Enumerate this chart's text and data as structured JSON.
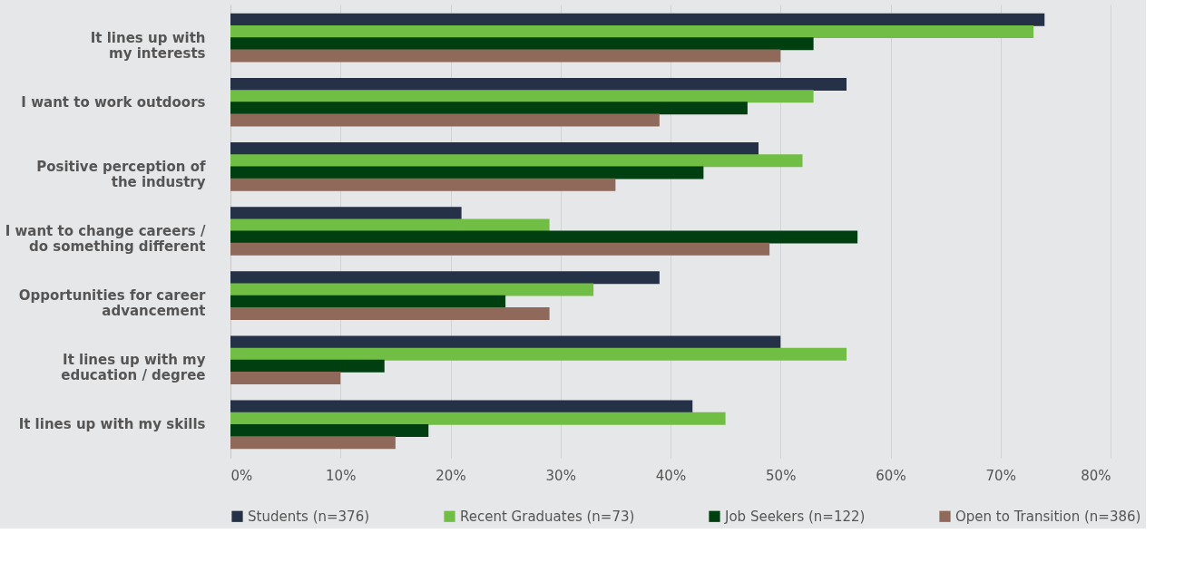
{
  "chart_data": {
    "type": "bar",
    "orientation": "horizontal",
    "categories": [
      "It lines up with\nmy interests",
      "I want to work outdoors",
      "Positive perception of\nthe industry",
      "I want to change careers /\ndo something different",
      "Opportunities for career\nadvancement",
      "It lines up with my\neducation / degree",
      "It lines up with my skills"
    ],
    "series": [
      {
        "name": "Students (n=376)",
        "color": "#243147",
        "values": [
          74,
          56,
          48,
          21,
          39,
          50,
          42
        ]
      },
      {
        "name": "Recent Graduates (n=73)",
        "color": "#70bf44",
        "values": [
          73,
          53,
          52,
          29,
          33,
          56,
          45
        ]
      },
      {
        "name": "Job Seekers (n=122)",
        "color": "#003f0f",
        "values": [
          53,
          47,
          43,
          57,
          25,
          14,
          18
        ]
      },
      {
        "name": "Open to Transition (n=386)",
        "color": "#8f6a5a",
        "values": [
          50,
          39,
          35,
          49,
          29,
          10,
          15
        ]
      }
    ],
    "xlim": [
      0,
      80
    ],
    "xticks": [
      {
        "value": 0,
        "label": "0%"
      },
      {
        "value": 10,
        "label": "10%"
      },
      {
        "value": 20,
        "label": "20%"
      },
      {
        "value": 30,
        "label": "30%"
      },
      {
        "value": 40,
        "label": "40%"
      },
      {
        "value": 50,
        "label": "50%"
      },
      {
        "value": 60,
        "label": "60%"
      },
      {
        "value": 70,
        "label": "70%"
      },
      {
        "value": 80,
        "label": "80%"
      }
    ],
    "grid": "x",
    "legend": "bottom"
  }
}
